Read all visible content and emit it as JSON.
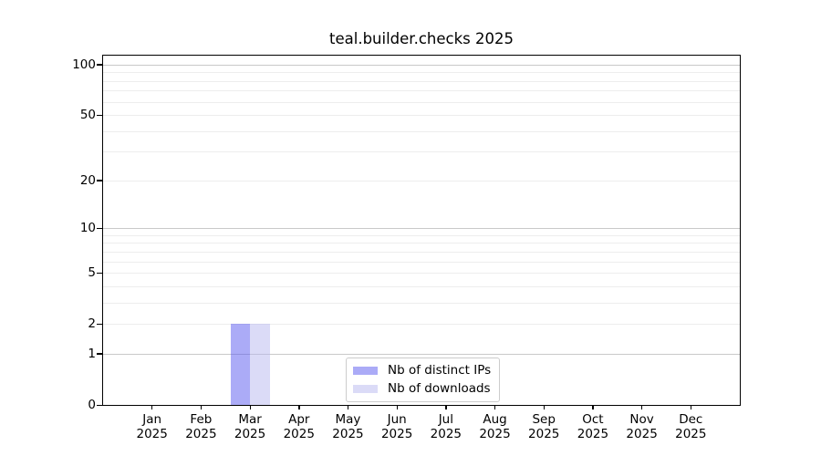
{
  "figure": {
    "background": "#ffffff",
    "frame_color": "#000000",
    "gridline_major_color": "#c9c9c9",
    "gridline_minor_color": "#ededed"
  },
  "chart_data": {
    "type": "bar",
    "title": "teal.builder.checks 2025",
    "xlabel": "",
    "ylabel": "",
    "categories": [
      "Jan 2025",
      "Feb 2025",
      "Mar 2025",
      "Apr 2025",
      "May 2025",
      "Jun 2025",
      "Jul 2025",
      "Aug 2025",
      "Sep 2025",
      "Oct 2025",
      "Nov 2025",
      "Dec 2025"
    ],
    "series": [
      {
        "name": "Nb of distinct IPs",
        "color": "rgba(88,88,240,0.5)",
        "values": [
          0,
          0,
          2,
          0,
          0,
          0,
          0,
          0,
          0,
          0,
          0,
          0
        ]
      },
      {
        "name": "Nb of downloads",
        "color": "rgba(184,184,240,0.5)",
        "values": [
          0,
          0,
          2,
          0,
          0,
          0,
          0,
          0,
          0,
          0,
          0,
          0
        ]
      }
    ],
    "yscale": "log1p",
    "ylim": [
      0,
      113
    ],
    "y_ticks": [
      0,
      1,
      2,
      5,
      10,
      20,
      50,
      100
    ],
    "y_major_gridlines": [
      1,
      10,
      100
    ],
    "y_minor_gridlines": [
      2,
      3,
      4,
      5,
      6,
      7,
      8,
      9,
      20,
      30,
      40,
      50,
      60,
      70,
      80,
      90
    ],
    "grid": true,
    "legend_position": "lower center"
  }
}
